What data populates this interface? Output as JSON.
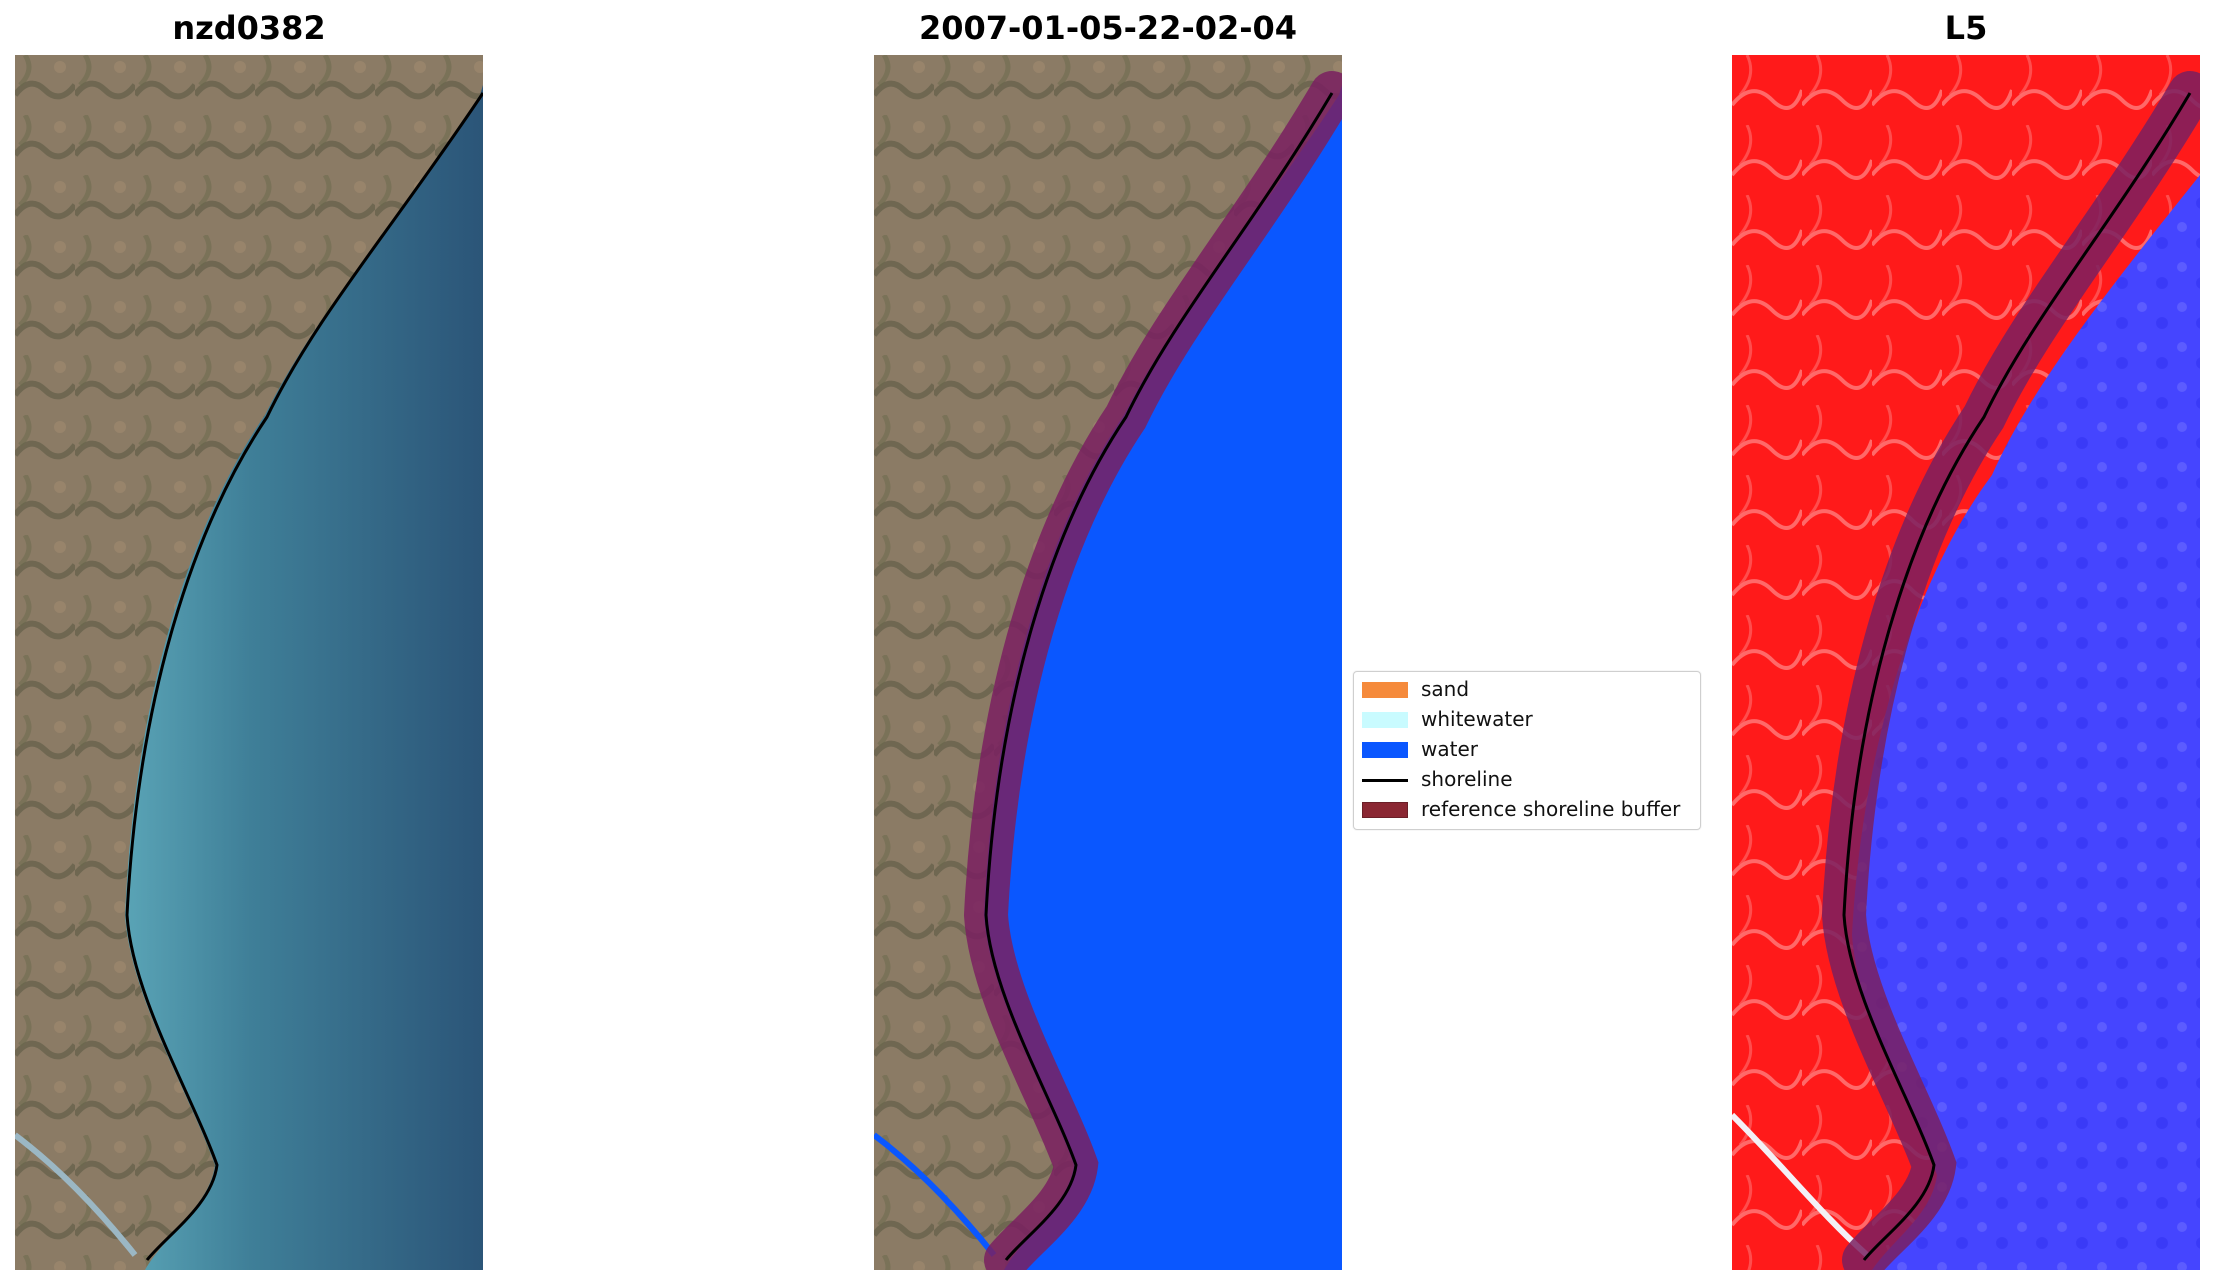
{
  "panels": [
    {
      "title": "nzd0382"
    },
    {
      "title": "2007-01-05-22-02-04"
    },
    {
      "title": "L5"
    }
  ],
  "legend": {
    "items": [
      {
        "label": "sand",
        "color": "#f58a3b",
        "kind": "patch"
      },
      {
        "label": "whitewater",
        "color": "#c9fbff",
        "kind": "patch"
      },
      {
        "label": "water",
        "color": "#0a57ff",
        "kind": "patch"
      },
      {
        "label": "shoreline",
        "color": "#000000",
        "kind": "line"
      },
      {
        "label": "reference shoreline buffer",
        "color": "#8b2733",
        "kind": "patch"
      }
    ]
  },
  "colors": {
    "land": "#8b7b65",
    "sea_rgb": "#2f5f7e",
    "sea_nearshore": "#5aa4b6",
    "water_class": "#0a57ff",
    "land_index": "#ff1a1a",
    "water_index": "#3a3aff",
    "buffer": "#7a2060"
  }
}
